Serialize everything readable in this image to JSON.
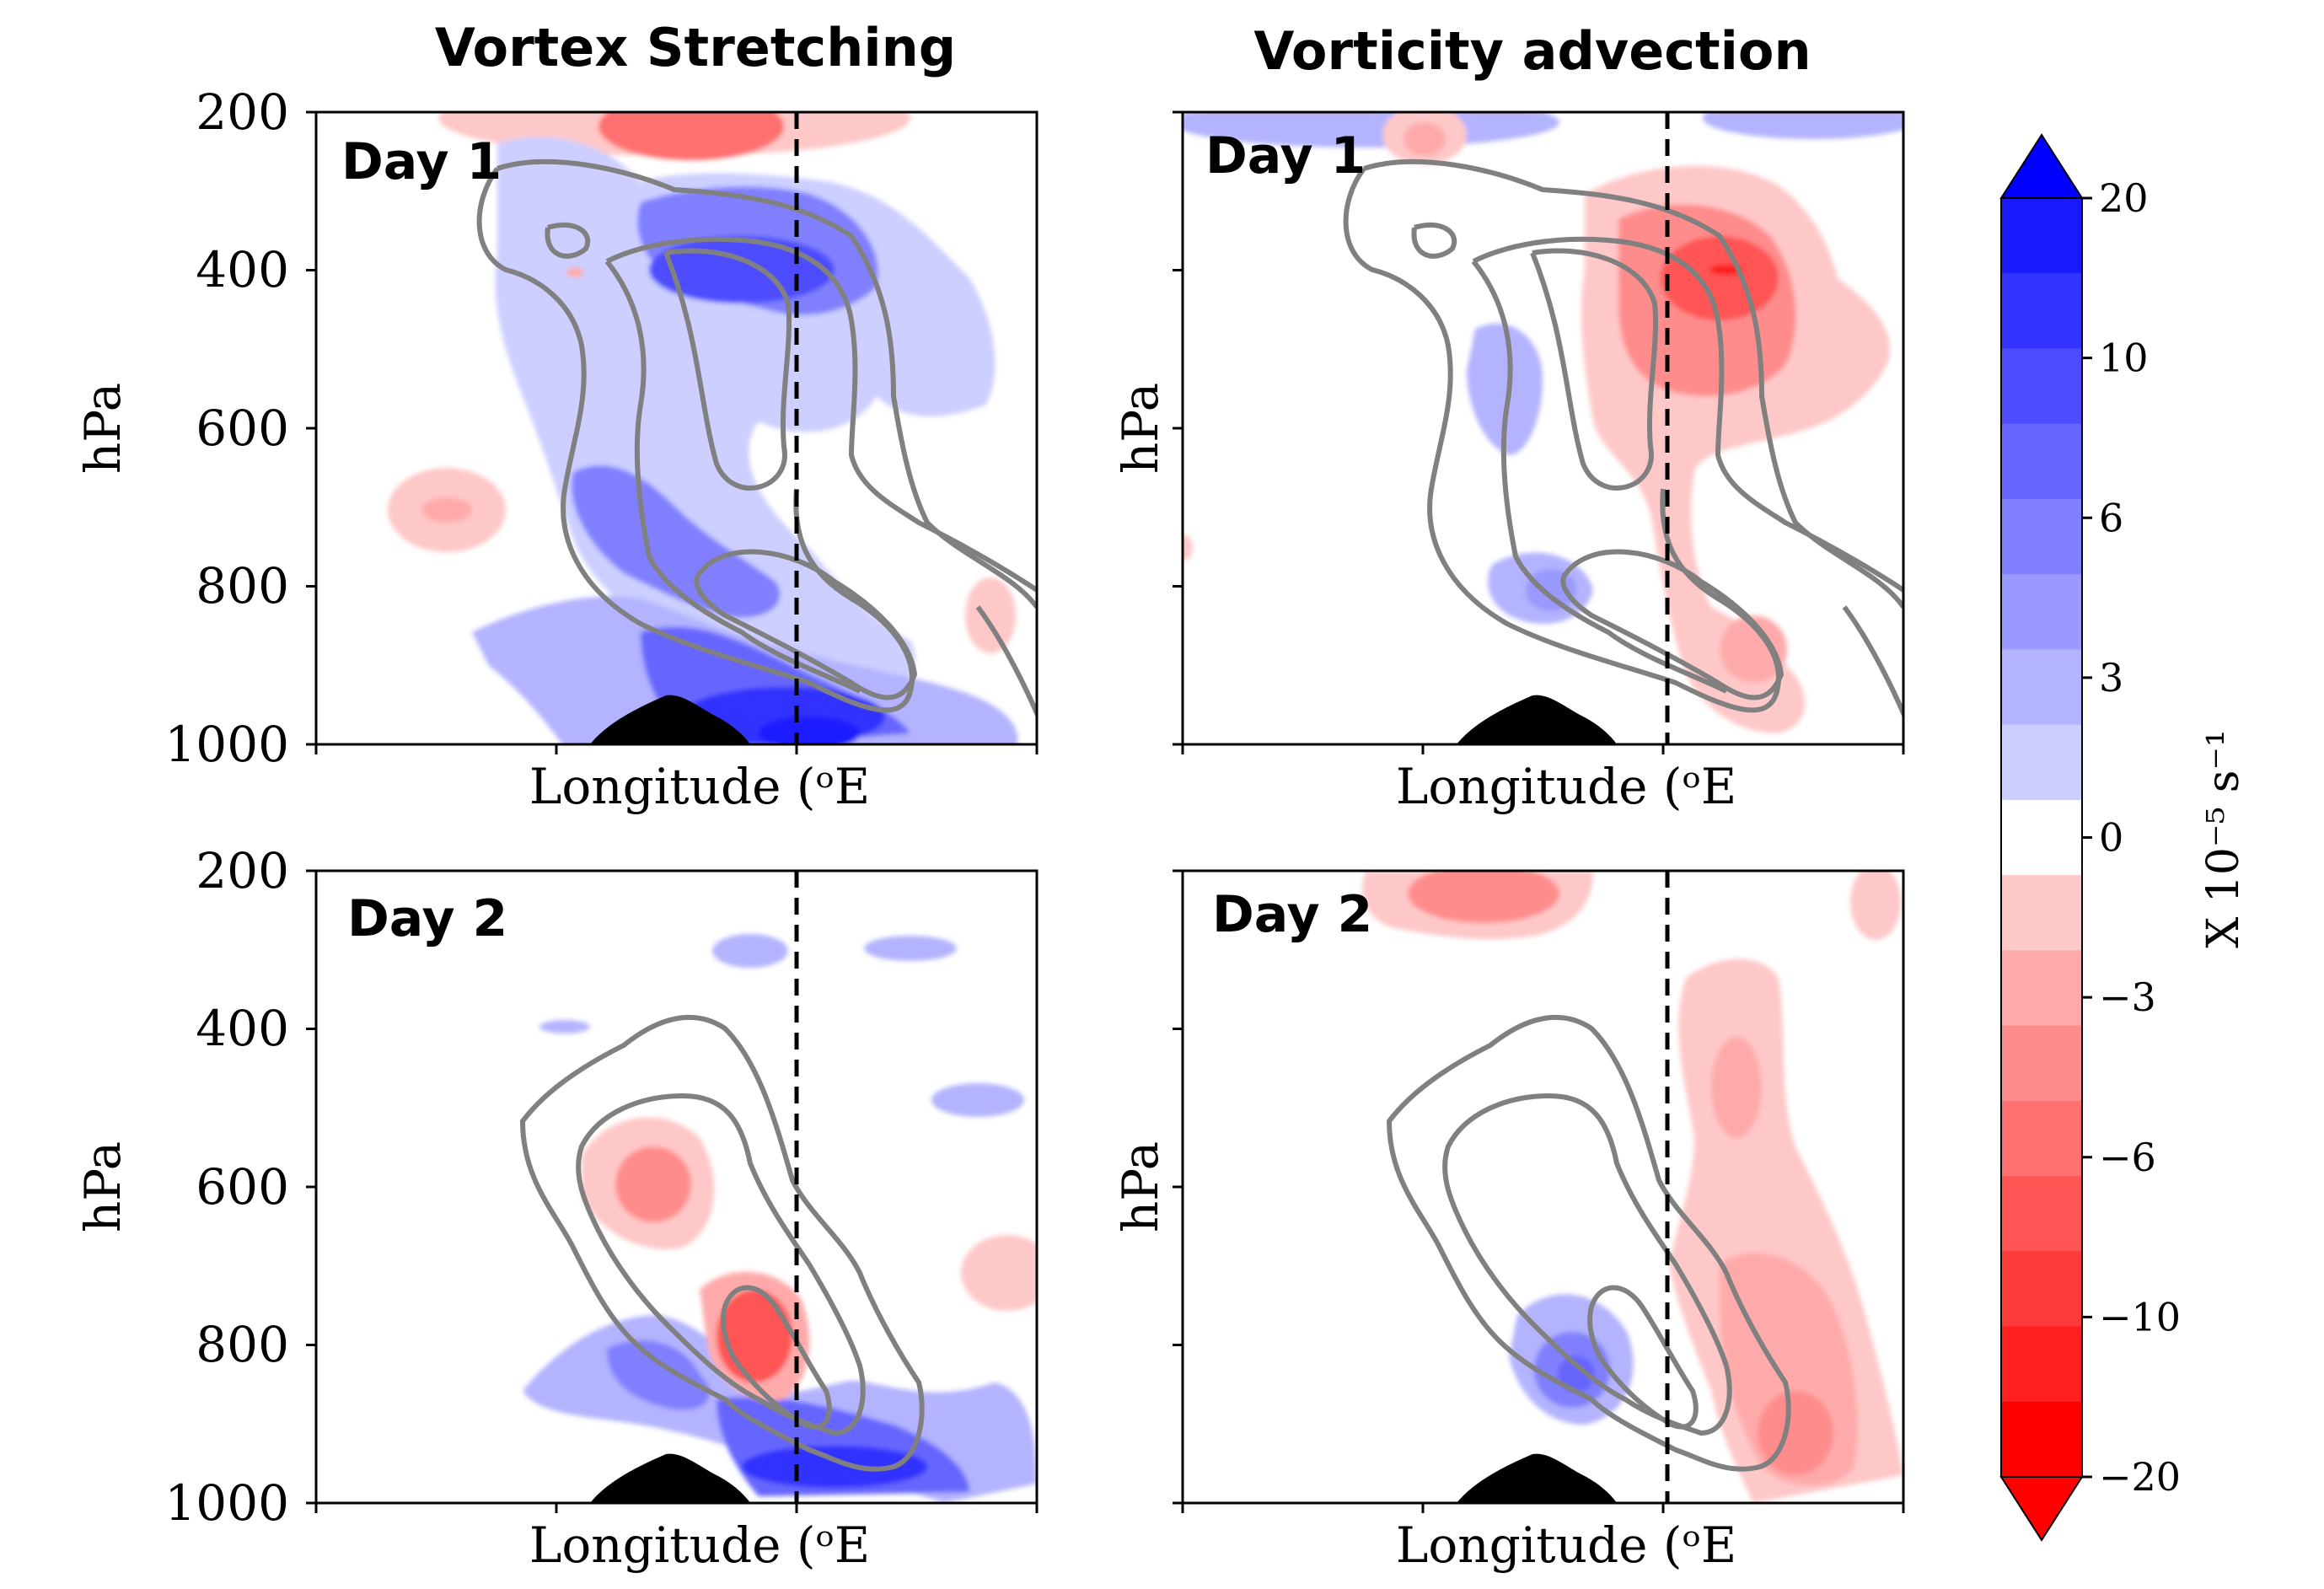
{
  "chart_data": {
    "type": "contour",
    "column_titles": [
      "Vortex Stretching",
      "Vorticity advection"
    ],
    "panels": [
      {
        "column_title": "Vortex Stretching",
        "day": "Day 1",
        "xlabel": "Longitude (ᵒE",
        "ylabel": "hPa",
        "yticks": [
          "200",
          "400",
          "600",
          "800",
          "1000"
        ],
        "ylim": [
          1000,
          200
        ],
        "y_axis": "inverted",
        "x_ticks_labeled": false
      },
      {
        "column_title": "Vorticity advection",
        "day": "Day 1",
        "xlabel": "Longitude (ᵒE",
        "ylabel": "hPa",
        "yticks": [],
        "ylim": [
          1000,
          200
        ],
        "y_axis": "inverted",
        "x_ticks_labeled": false
      },
      {
        "column_title": "Vortex Stretching",
        "day": "Day 2",
        "xlabel": "Longitude (ᵒE",
        "ylabel": "hPa",
        "yticks": [
          "200",
          "400",
          "600",
          "800",
          "1000"
        ],
        "ylim": [
          1000,
          200
        ],
        "y_axis": "inverted",
        "x_ticks_labeled": false
      },
      {
        "column_title": "Vorticity advection",
        "day": "Day 2",
        "xlabel": "Longitude (ᵒE",
        "ylabel": "hPa",
        "yticks": [],
        "ylim": [
          1000,
          200
        ],
        "y_axis": "inverted",
        "x_ticks_labeled": false
      }
    ],
    "colorbar": {
      "label": "X 10⁻⁵ s⁻¹",
      "tick_labels": [
        "20",
        "10",
        "6",
        "3",
        "0",
        "−3",
        "−6",
        "−10",
        "−20"
      ],
      "tick_values": [
        20,
        10,
        6,
        3,
        0,
        -3,
        -6,
        -10,
        -20
      ],
      "extend": "both",
      "positive_color": "#0000ff",
      "negative_color": "#ff0000",
      "levels_top_to_bottom": [
        "#1a1aff",
        "#3333ff",
        "#4d4dff",
        "#6666ff",
        "#8080ff",
        "#9999ff",
        "#b3b3ff",
        "#cccfff",
        "#ffffff",
        "#ffc8c8",
        "#ffaaaa",
        "#ff8c8c",
        "#ff7070",
        "#ff5555",
        "#ff3a3a",
        "#ff1f1f",
        "#ff0000"
      ]
    },
    "overlay": {
      "contours": "gray",
      "reference_line": "black dashed vertical",
      "terrain": "black"
    }
  }
}
